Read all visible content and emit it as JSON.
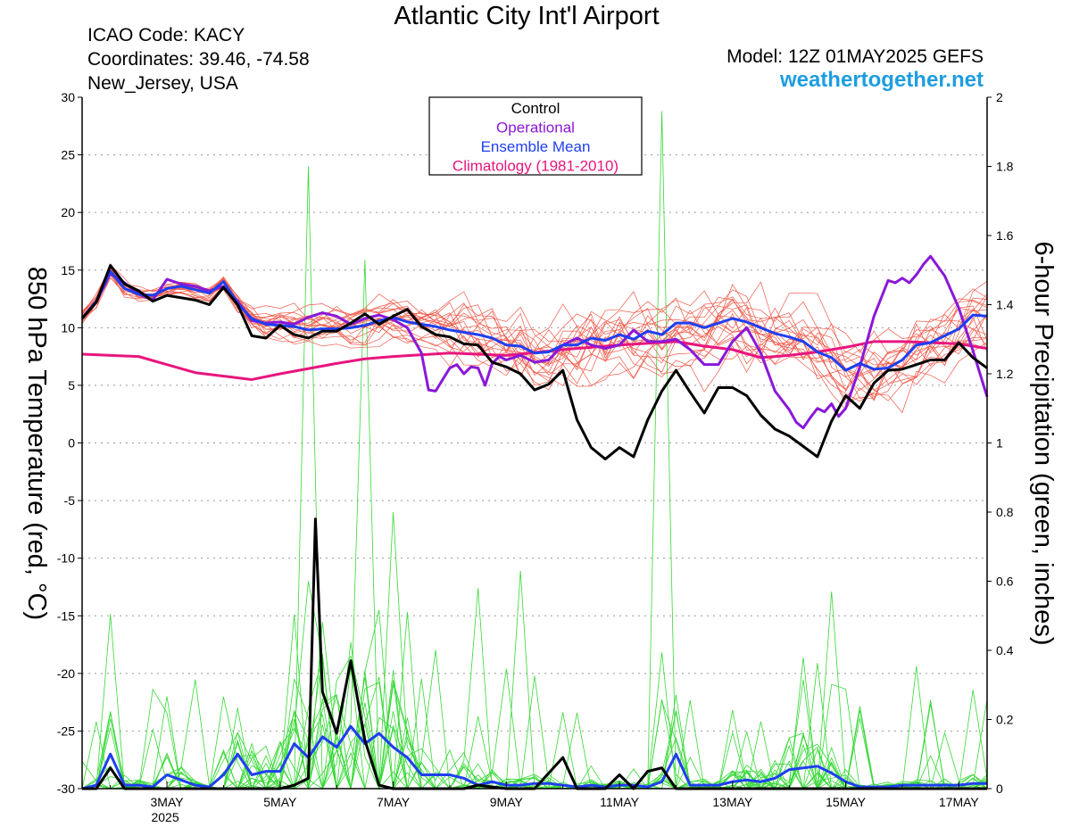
{
  "header": {
    "title": "Atlantic City Int'l Airport",
    "icao_line": "ICAO Code: KACY",
    "coords_line": "Coordinates: 39.46, -74.58",
    "location_line": "New_Jersey, USA",
    "model_line": "Model: 12Z 01MAY2025 GEFS",
    "site": "weathertogether.net"
  },
  "colors": {
    "members_temp": "#f05a4a",
    "members_precip": "#36d836",
    "control": "#000000",
    "operational": "#8a18d8",
    "ensemble_mean": "#1f3ff0",
    "climatology": "#e8157e"
  },
  "chart_data": {
    "type": "line",
    "title": "Atlantic City Int'l Airport",
    "ylabel_left": "850 hPa Temperature (red, °C)",
    "ylabel_right": "6-hour Precipitation (green, inches)",
    "x_ticks": [
      {
        "day": 3,
        "label": "3MAY",
        "sublabel": "2025"
      },
      {
        "day": 5,
        "label": "5MAY"
      },
      {
        "day": 7,
        "label": "7MAY"
      },
      {
        "day": 9,
        "label": "9MAY"
      },
      {
        "day": 11,
        "label": "11MAY"
      },
      {
        "day": 13,
        "label": "13MAY"
      },
      {
        "day": 15,
        "label": "15MAY"
      },
      {
        "day": 17,
        "label": "17MAY"
      }
    ],
    "xlim_days": [
      1.5,
      17.5
    ],
    "ylim_left": [
      -30,
      30
    ],
    "yticks_left": [
      -30,
      -25,
      -20,
      -15,
      -10,
      -5,
      0,
      5,
      10,
      15,
      20,
      25,
      30
    ],
    "ylim_right": [
      0,
      2
    ],
    "yticks_right": [
      "0",
      "0.2",
      "0.4",
      "0.6",
      "0.8",
      "1",
      "1.2",
      "1.4",
      "1.6",
      "1.8",
      "2"
    ],
    "grid": "horizontal dotted",
    "legend": {
      "placement": "top-center",
      "entries": [
        {
          "label": "Control",
          "color": "#000000"
        },
        {
          "label": "Operational",
          "color": "#8a18d8"
        },
        {
          "label": "Ensemble Mean",
          "color": "#1f3ff0"
        },
        {
          "label": "Climatology (1981-2010)",
          "color": "#e8157e"
        }
      ]
    },
    "temperature": {
      "control": {
        "x": [
          1.5,
          1.75,
          2.0,
          2.25,
          2.5,
          2.75,
          3.0,
          3.25,
          3.5,
          3.75,
          4.0,
          4.25,
          4.5,
          4.75,
          5.0,
          5.25,
          5.5,
          5.75,
          6.0,
          6.25,
          6.5,
          6.75,
          7.0,
          7.25,
          7.5,
          7.75,
          8.0,
          8.25,
          8.5,
          8.75,
          9.0,
          9.25,
          9.5,
          9.75,
          10.0,
          10.25,
          10.5,
          10.75,
          11.0,
          11.25,
          11.5,
          11.75,
          12.0,
          12.25,
          12.5,
          12.75,
          13.0,
          13.25,
          13.5,
          13.75,
          14.0,
          14.25,
          14.5,
          14.75,
          15.0,
          15.25,
          15.5,
          15.75,
          16.0,
          16.25,
          16.5,
          16.75,
          17.0,
          17.25,
          17.5
        ],
        "y": [
          10.8,
          12.2,
          15.4,
          13.8,
          13.2,
          12.3,
          12.8,
          12.6,
          12.4,
          12.0,
          13.5,
          12.0,
          9.3,
          9.1,
          10.2,
          9.4,
          9.1,
          9.7,
          9.7,
          10.4,
          11.2,
          10.3,
          11.0,
          11.6,
          10.1,
          9.4,
          9.2,
          8.6,
          8.5,
          7.0,
          6.6,
          6.0,
          4.6,
          5.1,
          6.3,
          2.0,
          -0.4,
          -1.4,
          -0.4,
          -1.2,
          2.0,
          4.5,
          6.3,
          4.4,
          2.6,
          4.8,
          4.8,
          4.1,
          2.4,
          1.2,
          0.6,
          -0.3,
          -1.2,
          1.9,
          4.1,
          3.0,
          5.2,
          6.3,
          6.4,
          6.8,
          7.2,
          7.2,
          8.7,
          7.4,
          6.5
        ]
      },
      "operational": {
        "x": [
          1.5,
          1.75,
          2.0,
          2.25,
          2.5,
          2.75,
          3.0,
          3.25,
          3.5,
          3.75,
          4.0,
          4.25,
          4.5,
          4.75,
          5.0,
          5.25,
          5.5,
          5.75,
          6.0,
          6.25,
          6.5,
          6.75,
          7.0,
          7.25,
          7.5,
          7.625,
          7.75,
          7.875,
          8.0,
          8.125,
          8.25,
          8.375,
          8.5,
          8.625,
          8.75,
          8.875,
          9.0,
          9.25,
          9.5,
          9.75,
          10.0,
          10.25,
          10.5,
          10.75,
          11.0,
          11.25,
          11.5,
          11.75,
          12.0,
          12.25,
          12.5,
          12.75,
          13.0,
          13.25,
          13.5,
          13.75,
          14.0,
          14.125,
          14.25,
          14.375,
          14.5,
          14.625,
          14.75,
          14.875,
          15.0,
          15.25,
          15.5,
          15.75,
          15.875,
          16.0,
          16.125,
          16.25,
          16.375,
          16.5,
          16.75,
          17.0,
          17.25,
          17.5
        ],
        "y": [
          10.8,
          12.2,
          14.7,
          13.9,
          12.9,
          12.4,
          14.2,
          13.8,
          13.6,
          13.2,
          13.6,
          12.3,
          10.6,
          10.4,
          10.5,
          10.3,
          10.9,
          11.3,
          11.0,
          10.3,
          10.8,
          11.1,
          10.7,
          10.0,
          7.8,
          4.6,
          4.5,
          5.5,
          6.5,
          6.8,
          6.0,
          6.6,
          6.5,
          5.0,
          6.9,
          7.5,
          7.2,
          7.6,
          7.0,
          7.2,
          8.5,
          9.1,
          8.5,
          8.2,
          8.5,
          9.8,
          8.8,
          8.8,
          9.0,
          8.1,
          6.8,
          6.8,
          8.8,
          10.0,
          7.8,
          4.5,
          2.9,
          1.8,
          1.3,
          2.2,
          3.0,
          2.7,
          3.4,
          2.3,
          3.0,
          6.6,
          11.0,
          14.1,
          13.9,
          14.3,
          13.9,
          14.6,
          15.5,
          16.2,
          14.5,
          11.7,
          8.0,
          4.0
        ]
      },
      "ensemble_mean": {
        "x": [
          1.5,
          1.75,
          2.0,
          2.25,
          2.5,
          2.75,
          3.0,
          3.25,
          3.5,
          3.75,
          4.0,
          4.25,
          4.5,
          4.75,
          5.0,
          5.25,
          5.5,
          5.75,
          6.0,
          6.25,
          6.5,
          6.75,
          7.0,
          7.25,
          7.5,
          7.75,
          8.0,
          8.25,
          8.5,
          8.75,
          9.0,
          9.25,
          9.5,
          9.75,
          10.0,
          10.25,
          10.5,
          10.75,
          11.0,
          11.25,
          11.5,
          11.75,
          12.0,
          12.25,
          12.5,
          12.75,
          13.0,
          13.25,
          13.5,
          13.75,
          14.0,
          14.25,
          14.5,
          14.75,
          15.0,
          15.25,
          15.5,
          15.75,
          16.0,
          16.25,
          16.5,
          16.75,
          17.0,
          17.25,
          17.5
        ],
        "y": [
          10.8,
          12.3,
          14.9,
          13.4,
          12.9,
          12.8,
          13.4,
          13.6,
          13.3,
          13.0,
          14.0,
          12.1,
          10.8,
          10.3,
          10.2,
          10.1,
          9.8,
          9.9,
          9.9,
          10.0,
          10.2,
          10.6,
          10.9,
          10.5,
          10.3,
          10.1,
          9.8,
          9.6,
          9.4,
          9.1,
          8.5,
          8.4,
          7.8,
          7.9,
          8.5,
          8.5,
          9.1,
          8.9,
          9.4,
          9.0,
          9.7,
          9.4,
          10.4,
          10.4,
          10.0,
          10.4,
          10.8,
          10.5,
          10.0,
          9.5,
          9.2,
          8.8,
          7.9,
          7.4,
          6.3,
          6.9,
          6.4,
          6.5,
          7.2,
          8.5,
          8.7,
          9.3,
          9.9,
          11.1,
          11.0
        ]
      },
      "climatology": {
        "x": [
          1.5,
          2.5,
          3.0,
          3.5,
          4.0,
          4.5,
          5.0,
          6.0,
          6.5,
          7.0,
          8.0,
          9.0,
          10.0,
          11.0,
          12.0,
          12.5,
          13.0,
          13.5,
          14.0,
          14.5,
          15.0,
          15.5,
          16.0,
          17.0,
          17.5
        ],
        "y": [
          7.7,
          7.5,
          6.8,
          6.1,
          5.8,
          5.5,
          6.0,
          6.9,
          7.3,
          7.5,
          7.8,
          7.6,
          8.1,
          8.5,
          8.8,
          8.4,
          8.1,
          7.4,
          7.6,
          7.9,
          8.3,
          8.8,
          8.8,
          8.6,
          8.2
        ]
      },
      "members_note": "20 ensemble members (thin red lines) spread approx. ±4 °C around the ensemble mean"
    },
    "precipitation": {
      "control": {
        "x": [
          1.5,
          1.75,
          2.0,
          2.25,
          2.5,
          3.0,
          3.5,
          4.0,
          4.5,
          5.0,
          5.25,
          5.5,
          5.625,
          5.75,
          6.0,
          6.25,
          6.5,
          6.75,
          7.0,
          7.25,
          7.5,
          8.0,
          8.25,
          8.5,
          9.0,
          9.5,
          10.0,
          10.25,
          10.5,
          10.75,
          11.0,
          11.25,
          11.5,
          11.75,
          12.0,
          12.25,
          12.5,
          13.0,
          13.5,
          14.0,
          14.5,
          15.0,
          15.5,
          16.0,
          16.5,
          17.0,
          17.5
        ],
        "y": [
          0,
          0,
          0.06,
          0,
          0,
          0,
          0,
          0,
          0,
          0,
          0.01,
          0.03,
          0.78,
          0.28,
          0.16,
          0.37,
          0.14,
          0.01,
          0,
          0,
          0,
          0,
          0,
          0.01,
          0,
          0,
          0.09,
          0,
          0,
          0,
          0.04,
          0,
          0.05,
          0.06,
          0,
          0,
          0,
          0,
          0,
          0,
          0,
          0,
          0,
          0,
          0,
          0,
          0
        ]
      },
      "ensemble_mean": {
        "x": [
          1.5,
          1.75,
          2.0,
          2.25,
          2.5,
          2.75,
          3.0,
          3.25,
          3.5,
          3.75,
          4.0,
          4.25,
          4.5,
          4.75,
          5.0,
          5.25,
          5.5,
          5.75,
          6.0,
          6.25,
          6.5,
          6.75,
          7.0,
          7.25,
          7.5,
          7.75,
          8.0,
          8.25,
          8.5,
          8.75,
          9.0,
          9.25,
          9.5,
          9.75,
          10.0,
          10.25,
          10.5,
          10.75,
          11.0,
          11.25,
          11.5,
          11.75,
          12.0,
          12.25,
          12.5,
          12.75,
          13.0,
          13.25,
          13.5,
          13.75,
          14.0,
          14.25,
          14.5,
          14.75,
          15.0,
          15.25,
          15.5,
          15.75,
          16.0,
          16.25,
          16.5,
          16.75,
          17.0,
          17.25,
          17.5
        ],
        "y": [
          0,
          0.01,
          0.1,
          0.01,
          0.01,
          0.005,
          0.04,
          0.025,
          0.01,
          0.005,
          0.04,
          0.1,
          0.04,
          0.05,
          0.05,
          0.13,
          0.09,
          0.15,
          0.12,
          0.18,
          0.13,
          0.16,
          0.12,
          0.09,
          0.04,
          0.04,
          0.04,
          0.03,
          0.01,
          0.02,
          0.01,
          0.01,
          0.015,
          0.015,
          0.01,
          0.005,
          0.01,
          0.005,
          0.01,
          0.01,
          0.005,
          0.02,
          0.1,
          0.01,
          0.01,
          0.01,
          0.02,
          0.025,
          0.02,
          0.03,
          0.055,
          0.06,
          0.065,
          0.045,
          0.02,
          0.005,
          0.005,
          0.005,
          0.01,
          0.01,
          0.01,
          0.01,
          0.01,
          0.015,
          0.015
        ]
      },
      "peak_member_values_note": "member peaks reach about 1.96 in (11.75 MAY), 1.8 in (5.5 MAY), 1.53 in (6.5 MAY)"
    }
  }
}
